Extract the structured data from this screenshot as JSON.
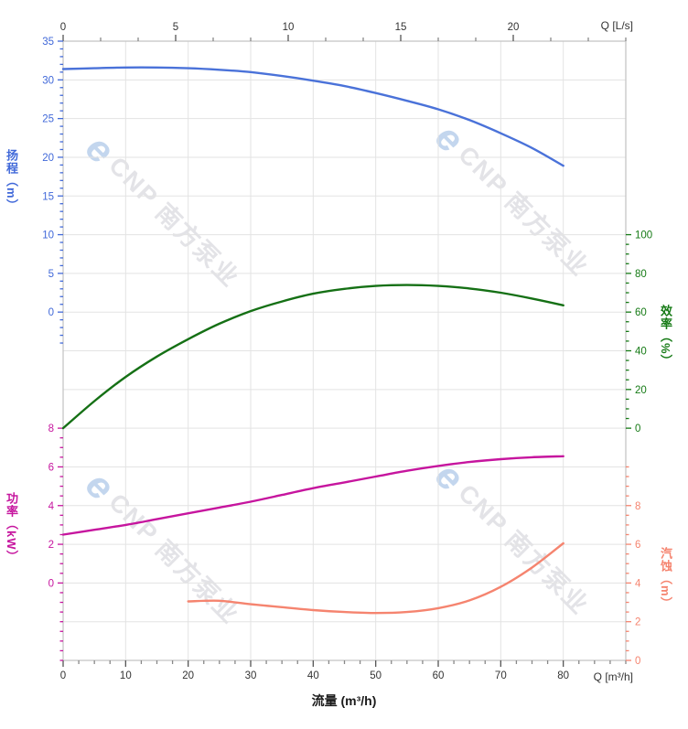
{
  "page": {
    "background": "#ffffff",
    "grid_color": "#e3e3e3",
    "border_color": "#c2c2c2",
    "axis_tick_color": "#555555"
  },
  "top_axis": {
    "label": "Q [L/s]",
    "tick_values": [
      0,
      5,
      10,
      15,
      20
    ],
    "color": "#333333"
  },
  "bottom_axis": {
    "label": "Q [m³/h]",
    "title": "流量 (m³/h)",
    "tick_values": [
      0,
      10,
      20,
      30,
      40,
      50,
      60,
      70,
      80
    ],
    "color": "#333333"
  },
  "left_axes": [
    {
      "id": "head",
      "title": "扬程（m）",
      "color": "#4169d9",
      "tick_values": [
        35,
        30,
        25,
        20,
        15,
        10,
        5,
        0
      ]
    },
    {
      "id": "power",
      "title": "功率（kW）",
      "color": "#c6159e",
      "tick_values": [
        8,
        6,
        4,
        2,
        0
      ]
    }
  ],
  "right_axes": [
    {
      "id": "efficiency",
      "title": "效率（%）",
      "color": "#157a15",
      "tick_values": [
        100,
        80,
        60,
        40,
        20,
        0
      ]
    },
    {
      "id": "npsh",
      "title": "汽蚀（m）",
      "color": "#f5846f",
      "tick_values": [
        8,
        6,
        4,
        2,
        0
      ]
    }
  ],
  "watermark": {
    "logo_glyph": "e",
    "text": "CNP 南方泵业",
    "text_color": "#e3e3e7",
    "logo_color": "#c3d6ee"
  },
  "chart_data": {
    "type": "line",
    "title": "",
    "x_axis": {
      "title": "流量 (m³/h)",
      "top_label": "Q [L/s]",
      "bottom_label": "Q [m³/h]",
      "range_m3h": [
        0,
        90
      ],
      "range_ls": [
        0,
        25
      ],
      "major_grid_step_m3h": 10
    },
    "grid": {
      "visible": true,
      "rows": 16,
      "cols": 9
    },
    "series": [
      {
        "name": "扬程",
        "axis": "head",
        "unit": "m",
        "color": "#4a72d9",
        "axis_range": [
          0,
          35
        ],
        "x": [
          0,
          5,
          10,
          15,
          20,
          25,
          30,
          35,
          40,
          45,
          50,
          55,
          60,
          65,
          70,
          75,
          80
        ],
        "y": [
          31.4,
          31.5,
          31.6,
          31.6,
          31.5,
          31.3,
          31.0,
          30.5,
          29.9,
          29.2,
          28.3,
          27.3,
          26.2,
          24.8,
          23.1,
          21.2,
          18.9
        ]
      },
      {
        "name": "效率",
        "axis": "efficiency",
        "unit": "%",
        "color": "#157015",
        "axis_range": [
          0,
          100
        ],
        "x": [
          0,
          5,
          10,
          15,
          20,
          25,
          30,
          35,
          40,
          45,
          50,
          55,
          60,
          65,
          70,
          75,
          80
        ],
        "y": [
          0,
          14,
          26.5,
          37,
          46,
          54,
          60.5,
          65.5,
          69.5,
          72,
          73.5,
          74,
          73.5,
          72.2,
          70,
          67,
          63.5
        ]
      },
      {
        "name": "功率",
        "axis": "power",
        "unit": "kW",
        "color": "#c6159e",
        "axis_range": [
          0,
          8
        ],
        "x": [
          0,
          5,
          10,
          15,
          20,
          25,
          30,
          35,
          40,
          45,
          50,
          55,
          60,
          65,
          70,
          75,
          80
        ],
        "y": [
          2.5,
          2.75,
          3.0,
          3.3,
          3.6,
          3.9,
          4.2,
          4.55,
          4.9,
          5.2,
          5.5,
          5.8,
          6.05,
          6.25,
          6.4,
          6.5,
          6.55
        ]
      },
      {
        "name": "汽蚀",
        "axis": "npsh",
        "unit": "m",
        "color": "#f5846f",
        "axis_range": [
          0,
          8
        ],
        "x": [
          20,
          25,
          30,
          35,
          40,
          45,
          50,
          55,
          60,
          65,
          70,
          75,
          80
        ],
        "y": [
          3.05,
          3.08,
          2.9,
          2.75,
          2.6,
          2.5,
          2.45,
          2.5,
          2.7,
          3.1,
          3.8,
          4.8,
          6.05
        ]
      }
    ]
  }
}
